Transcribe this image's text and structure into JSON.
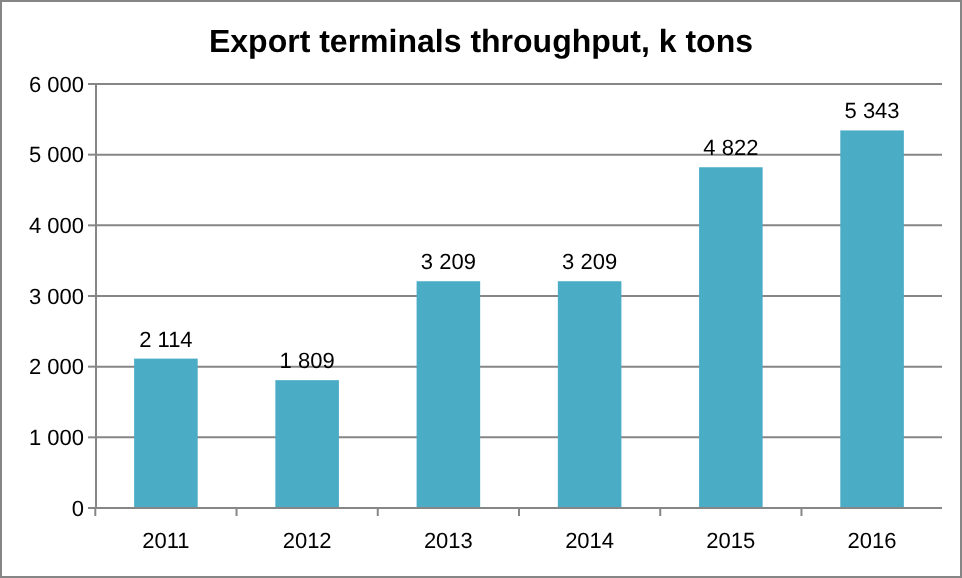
{
  "chart_data": {
    "type": "bar",
    "title": "Export terminals throughput, k tons",
    "categories": [
      "2011",
      "2012",
      "2013",
      "2014",
      "2015",
      "2016"
    ],
    "values": [
      2114,
      1809,
      3209,
      3209,
      4822,
      5343
    ],
    "value_labels": [
      "2 114",
      "1 809",
      "3 209",
      "3 209",
      "4 822",
      "5 343"
    ],
    "color": "#4bacc6",
    "ylim": [
      0,
      6000
    ],
    "yticks": [
      0,
      {
        "value": 1000,
        "label": "1 000"
      },
      {
        "value": 2000,
        "label": "2 000"
      },
      {
        "value": 3000,
        "label": "3 000"
      },
      {
        "value": 4000,
        "label": "4 000"
      },
      {
        "value": 5000,
        "label": "5 000"
      },
      {
        "value": 6000,
        "label": "6 000"
      }
    ],
    "grid": "y"
  }
}
